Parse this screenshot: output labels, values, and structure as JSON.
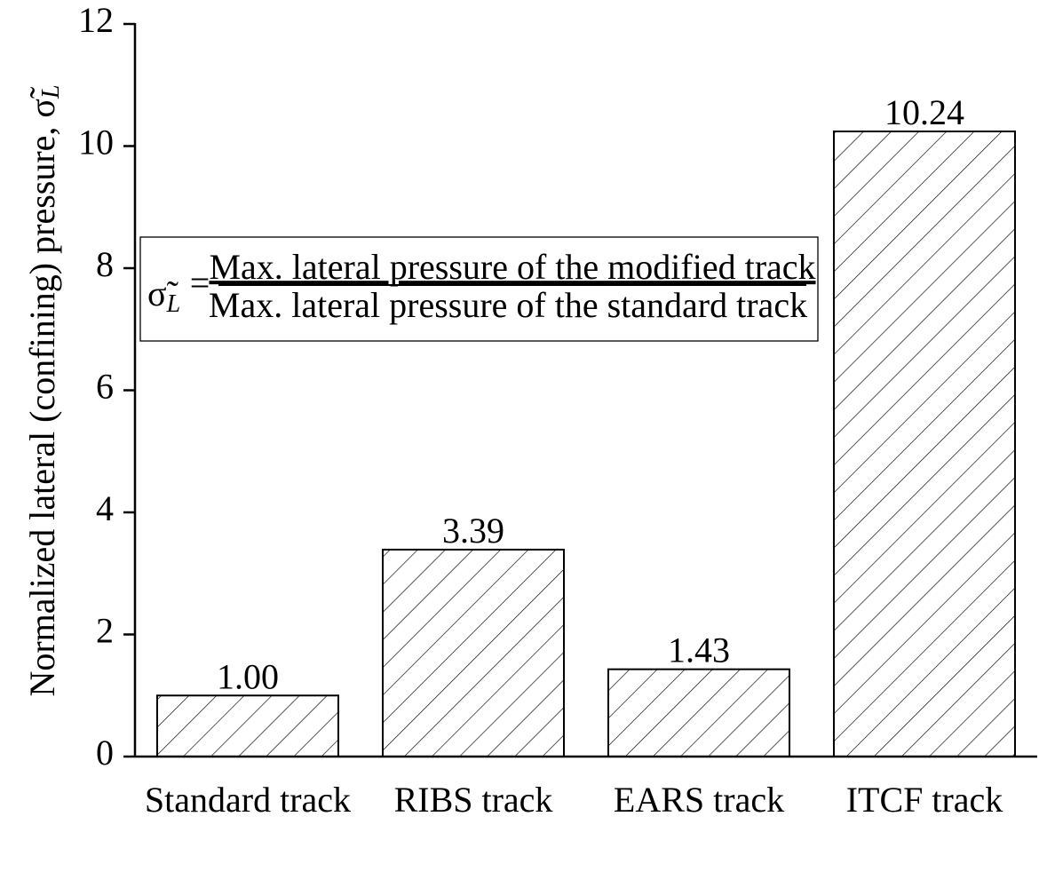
{
  "chart_data": {
    "type": "bar",
    "ylabel": "Normalized lateral (confining) pressure, σ̃",
    "ylabel_subscript": "L",
    "categories": [
      "Standard track",
      "RIBS track",
      "EARS track",
      "ITCF track"
    ],
    "values": [
      1.0,
      3.39,
      1.43,
      10.24
    ],
    "value_labels": [
      "1.00",
      "3.39",
      "1.43",
      "10.24"
    ],
    "color": "#ffffff",
    "ylim": [
      0,
      12
    ],
    "yticks": [
      0,
      2,
      4,
      6,
      8,
      10,
      12
    ],
    "annotation": {
      "symbol": "σ̃",
      "subscript": "L",
      "equals": "=",
      "numerator": "Max. lateral pressure of the modified track",
      "denominator": "Max. lateral pressure of the standard track"
    }
  }
}
